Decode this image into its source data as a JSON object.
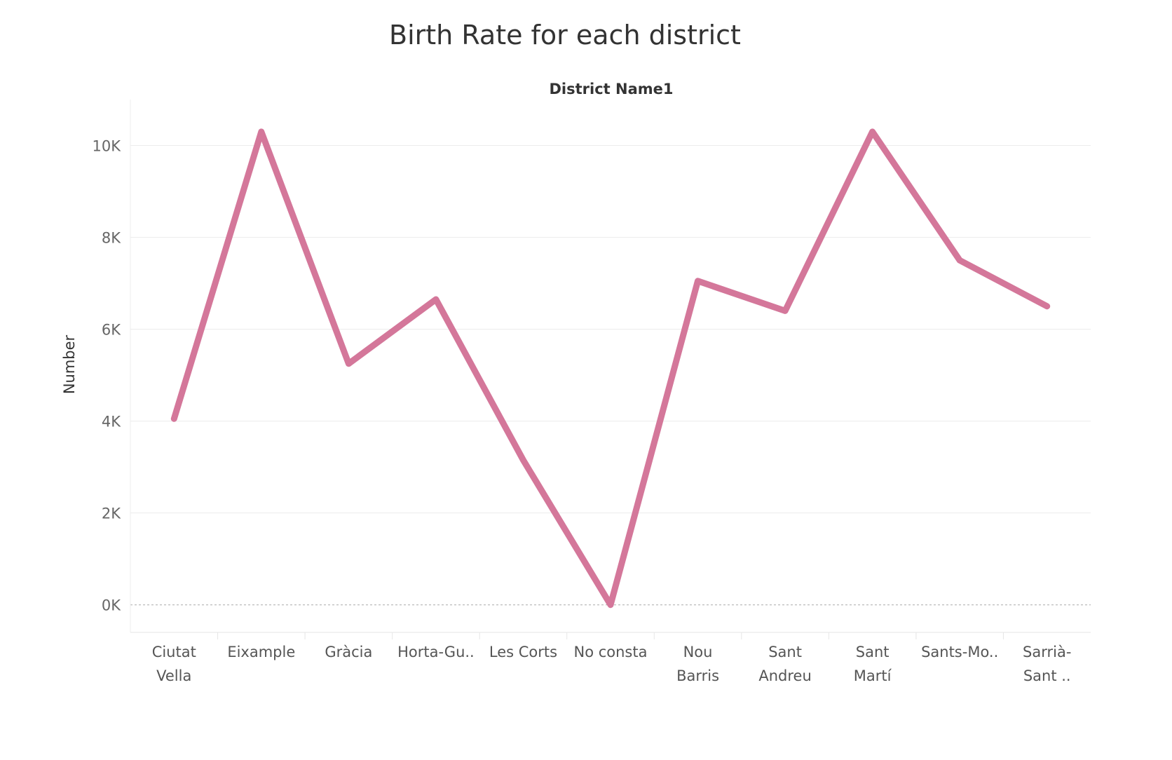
{
  "chart_data": {
    "type": "line",
    "title": "Birth Rate for each district",
    "column_header": "District Name1",
    "xlabel": "",
    "ylabel": "Number",
    "categories": [
      [
        "Ciutat",
        "Vella"
      ],
      [
        "Eixample"
      ],
      [
        "Gràcia"
      ],
      [
        "Horta-Gu.."
      ],
      [
        "Les Corts"
      ],
      [
        "No consta"
      ],
      [
        "Nou",
        "Barris"
      ],
      [
        "Sant",
        "Andreu"
      ],
      [
        "Sant",
        "Martí"
      ],
      [
        "Sants-Mo.."
      ],
      [
        "Sarrià-",
        "Sant .."
      ]
    ],
    "values": [
      4050,
      10300,
      5250,
      6650,
      3150,
      0,
      7050,
      6400,
      10300,
      7500,
      6500
    ],
    "ylim": [
      -600,
      11000
    ],
    "yticks": [
      0,
      2000,
      4000,
      6000,
      8000,
      10000
    ],
    "ytick_labels": [
      "0K",
      "2K",
      "4K",
      "6K",
      "8K",
      "10K"
    ],
    "line_color": "#d4779a",
    "grid": true
  }
}
